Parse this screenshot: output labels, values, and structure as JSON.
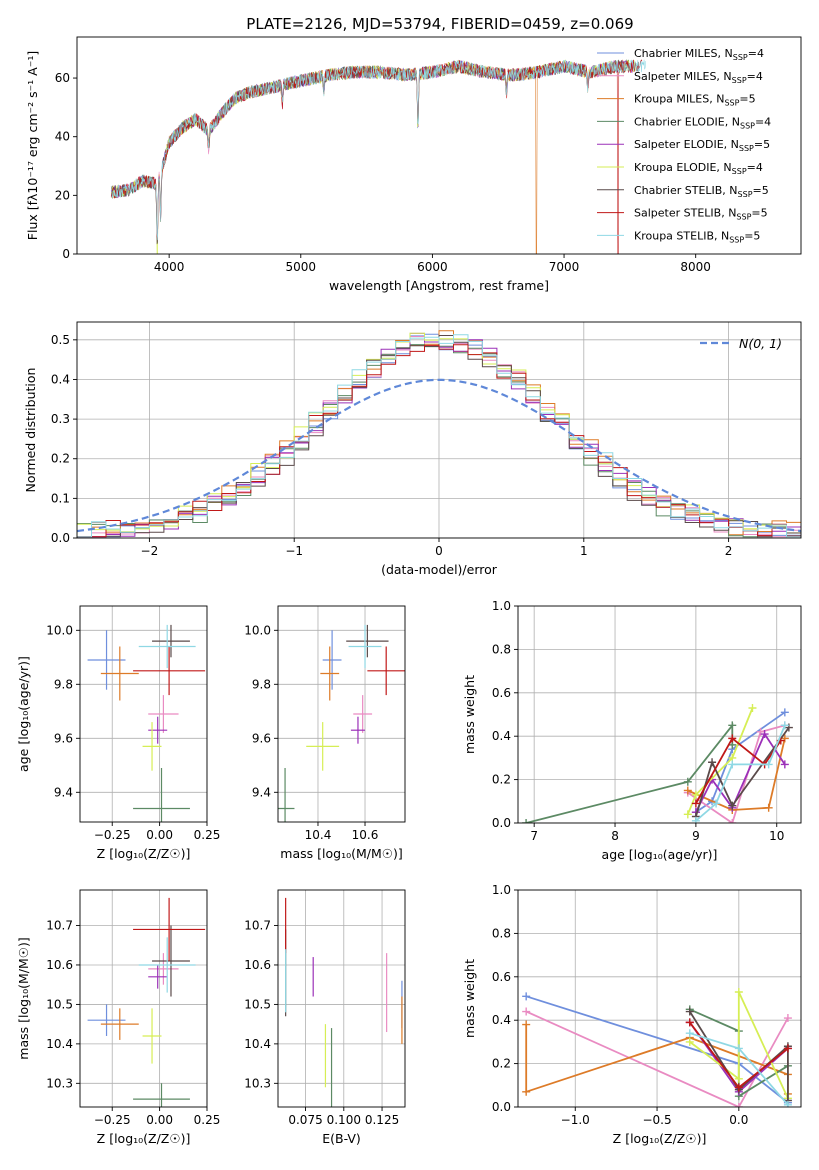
{
  "figure_title": "PLATE=2126, MJD=53794, FIBERID=0459, z=0.069",
  "models": [
    {
      "label": "Chabrier MILES, N",
      "sub": "SSP",
      "suffix": "=4",
      "color": "#6f8fdd"
    },
    {
      "label": "Salpeter MILES, N",
      "sub": "SSP",
      "suffix": "=4",
      "color": "#e98bc2"
    },
    {
      "label": "Kroupa MILES, N",
      "sub": "SSP",
      "suffix": "=5",
      "color": "#dd7b28"
    },
    {
      "label": "Chabrier ELODIE, N",
      "sub": "SSP",
      "suffix": "=4",
      "color": "#5c8a64"
    },
    {
      "label": "Salpeter ELODIE, N",
      "sub": "SSP",
      "suffix": "=5",
      "color": "#9b30b8"
    },
    {
      "label": "Kroupa ELODIE, N",
      "sub": "SSP",
      "suffix": "=4",
      "color": "#d6ee55"
    },
    {
      "label": "Chabrier STELIB, N",
      "sub": "SSP",
      "suffix": "=5",
      "color": "#5a4a4a"
    },
    {
      "label": "Salpeter STELIB, N",
      "sub": "SSP",
      "suffix": "=5",
      "color": "#c01818"
    },
    {
      "label": "Kroupa STELIB, N",
      "sub": "SSP",
      "suffix": "=5",
      "color": "#8fd8e4"
    }
  ],
  "chart_data": [
    {
      "id": "spectrum",
      "type": "line",
      "xlabel": "wavelength [Angstrom, rest frame]",
      "ylabel": "Flux [fλ10⁻¹⁷ erg cm⁻² s⁻¹ A⁻¹]",
      "xlim": [
        3300,
        8800
      ],
      "ylim": [
        0,
        74
      ],
      "xticks": [
        "4000",
        "5000",
        "6000",
        "7000",
        "8000"
      ],
      "yticks": [
        "0",
        "20",
        "40",
        "60"
      ],
      "continuum": {
        "x": [
          3560,
          3700,
          3800,
          3900,
          3950,
          4000,
          4100,
          4200,
          4300,
          4400,
          4500,
          4600,
          4800,
          5000,
          5200,
          5400,
          5600,
          5800,
          6000,
          6200,
          6400,
          6600,
          6800,
          7000,
          7200,
          7400
        ],
        "y": [
          21,
          22,
          25,
          24,
          30,
          38,
          43,
          46,
          42,
          48,
          53,
          55,
          57,
          59,
          61,
          62,
          62,
          61,
          62,
          64,
          62,
          61,
          62,
          64,
          62,
          64
        ]
      },
      "features": [
        {
          "wavelength": 3910,
          "depth": 22
        },
        {
          "wavelength": 3935,
          "depth": 16
        },
        {
          "wavelength": 4300,
          "depth": 6
        },
        {
          "wavelength": 4860,
          "depth": 6
        },
        {
          "wavelength": 5175,
          "depth": 5
        },
        {
          "wavelength": 5890,
          "depth": 18
        },
        {
          "wavelength": 6563,
          "depth": 6
        },
        {
          "wavelength": 7180,
          "depth": 5
        }
      ],
      "dropouts": [
        {
          "model": 5,
          "wavelength": 3910,
          "to": 0
        },
        {
          "model": 2,
          "wavelength": 6790,
          "to": 0
        },
        {
          "model": 7,
          "wavelength": 7410,
          "to": 0
        }
      ]
    },
    {
      "id": "residual-histogram",
      "type": "bar",
      "xlabel": "(data-model)/error",
      "ylabel": "Normed distribution",
      "xlim": [
        -2.5,
        2.5
      ],
      "ylim": [
        0,
        0.545
      ],
      "xticks": [
        "−2",
        "−1",
        "0",
        "1",
        "2"
      ],
      "yticks": [
        "0.0",
        "0.1",
        "0.2",
        "0.3",
        "0.4",
        "0.5"
      ],
      "bin_edges": [
        -2.5,
        -2.4,
        -2.3,
        -2.2,
        -2.1,
        -2.0,
        -1.9,
        -1.8,
        -1.7,
        -1.6,
        -1.5,
        -1.4,
        -1.3,
        -1.2,
        -1.1,
        -1.0,
        -0.9,
        -0.8,
        -0.7,
        -0.6,
        -0.5,
        -0.4,
        -0.3,
        -0.2,
        -0.1,
        0.0,
        0.1,
        0.2,
        0.3,
        0.4,
        0.5,
        0.6,
        0.7,
        0.8,
        0.9,
        1.0,
        1.1,
        1.2,
        1.3,
        1.4,
        1.5,
        1.6,
        1.7,
        1.8,
        1.9,
        2.0,
        2.1,
        2.2,
        2.3,
        2.4,
        2.5
      ],
      "reference_label": "N(0, 1)",
      "reference_color": "#5f88d8"
    },
    {
      "id": "age-vs-Z",
      "type": "scatter",
      "xlabel": "Z [log₁₀(Z/Z☉)]",
      "ylabel": "age  [log₁₀(age/yr)]",
      "xlim": [
        -0.42,
        0.25
      ],
      "ylim": [
        9.29,
        10.09
      ],
      "xticks": [
        "−0.25",
        "0.00",
        "0.25"
      ],
      "yticks": [
        "9.4",
        "9.6",
        "9.8",
        "10.0"
      ],
      "points": [
        {
          "model": 0,
          "x": -0.28,
          "y": 9.89,
          "xerr": 0.1,
          "yerr": 0.11
        },
        {
          "model": 1,
          "x": 0.02,
          "y": 9.69,
          "xerr": 0.08,
          "yerr": 0.07
        },
        {
          "model": 2,
          "x": -0.21,
          "y": 9.84,
          "xerr": 0.1,
          "yerr": 0.1
        },
        {
          "model": 3,
          "x": 0.01,
          "y": 9.34,
          "xerr": 0.15,
          "yerr": 0.15
        },
        {
          "model": 4,
          "x": -0.01,
          "y": 9.63,
          "xerr": 0.05,
          "yerr": 0.05
        },
        {
          "model": 5,
          "x": -0.04,
          "y": 9.57,
          "xerr": 0.05,
          "yerr": 0.09
        },
        {
          "model": 6,
          "x": 0.06,
          "y": 9.96,
          "xerr": 0.1,
          "yerr": 0.06
        },
        {
          "model": 7,
          "x": 0.05,
          "y": 9.85,
          "xerr": 0.19,
          "yerr": 0.09
        },
        {
          "model": 8,
          "x": 0.04,
          "y": 9.94,
          "xerr": 0.15,
          "yerr": 0.08
        }
      ]
    },
    {
      "id": "age-vs-mass",
      "type": "scatter",
      "xlabel": "mass [log₁₀(M/M☉)]",
      "ylabel": "",
      "xlim": [
        10.23,
        10.77
      ],
      "ylim": [
        9.29,
        10.09
      ],
      "xticks": [
        "10.4",
        "10.6"
      ],
      "yticks": [
        "9.4",
        "9.6",
        "9.8",
        "10.0"
      ],
      "points": [
        {
          "model": 0,
          "x": 10.46,
          "y": 9.89,
          "xerr": 0.04,
          "yerr": 0.11
        },
        {
          "model": 1,
          "x": 10.59,
          "y": 9.69,
          "xerr": 0.04,
          "yerr": 0.07
        },
        {
          "model": 2,
          "x": 10.45,
          "y": 9.84,
          "xerr": 0.04,
          "yerr": 0.1
        },
        {
          "model": 3,
          "x": 10.26,
          "y": 9.34,
          "xerr": 0.04,
          "yerr": 0.15
        },
        {
          "model": 4,
          "x": 10.57,
          "y": 9.63,
          "xerr": 0.03,
          "yerr": 0.05
        },
        {
          "model": 5,
          "x": 10.42,
          "y": 9.57,
          "xerr": 0.07,
          "yerr": 0.09
        },
        {
          "model": 6,
          "x": 10.61,
          "y": 9.96,
          "xerr": 0.09,
          "yerr": 0.06
        },
        {
          "model": 7,
          "x": 10.69,
          "y": 9.85,
          "xerr": 0.08,
          "yerr": 0.09
        },
        {
          "model": 8,
          "x": 10.6,
          "y": 9.94,
          "xerr": 0.07,
          "yerr": 0.08
        }
      ]
    },
    {
      "id": "mass-weight-vs-age",
      "type": "line",
      "xlabel": "age  [log₁₀(age/yr)]",
      "ylabel": "mass weight",
      "xlim": [
        6.8,
        10.3
      ],
      "ylim": [
        0,
        1
      ],
      "xticks": [
        "7",
        "8",
        "9",
        "10"
      ],
      "yticks": [
        "0.0",
        "0.2",
        "0.4",
        "0.6",
        "0.8",
        "1.0"
      ],
      "series": [
        {
          "model": 0,
          "x": [
            9.0,
            9.2,
            9.45,
            10.1
          ],
          "y": [
            0.05,
            0.1,
            0.34,
            0.51
          ]
        },
        {
          "model": 1,
          "x": [
            8.9,
            9.45,
            9.8,
            10.1
          ],
          "y": [
            0.14,
            0.0,
            0.42,
            0.45
          ]
        },
        {
          "model": 2,
          "x": [
            8.9,
            9.45,
            9.9,
            10.1
          ],
          "y": [
            0.15,
            0.06,
            0.07,
            0.39
          ]
        },
        {
          "model": 3,
          "x": [
            6.9,
            8.9,
            9.45,
            9.45
          ],
          "y": [
            0.0,
            0.19,
            0.45,
            0.36
          ]
        },
        {
          "model": 4,
          "x": [
            9.0,
            9.2,
            9.45,
            9.85,
            10.1
          ],
          "y": [
            0.05,
            0.2,
            0.07,
            0.41,
            0.27
          ]
        },
        {
          "model": 5,
          "x": [
            8.9,
            9.0,
            9.45,
            9.7
          ],
          "y": [
            0.04,
            0.13,
            0.3,
            0.53
          ]
        },
        {
          "model": 6,
          "x": [
            9.0,
            9.2,
            9.45,
            10.15
          ],
          "y": [
            0.03,
            0.28,
            0.08,
            0.44
          ]
        },
        {
          "model": 7,
          "x": [
            9.0,
            9.45,
            9.85,
            10.05
          ],
          "y": [
            0.09,
            0.39,
            0.27,
            0.38
          ]
        },
        {
          "model": 8,
          "x": [
            9.0,
            9.25,
            9.45,
            9.9,
            10.1
          ],
          "y": [
            0.01,
            0.09,
            0.27,
            0.27,
            0.45
          ]
        }
      ]
    },
    {
      "id": "mass-vs-Z",
      "type": "scatter",
      "xlabel": "Z [log₁₀(Z/Z☉)]",
      "ylabel": "mass [log₁₀(M/M☉)]",
      "xlim": [
        -0.42,
        0.25
      ],
      "ylim": [
        10.24,
        10.79
      ],
      "xticks": [
        "−0.25",
        "0.00",
        "0.25"
      ],
      "yticks": [
        "10.3",
        "10.4",
        "10.5",
        "10.6",
        "10.7"
      ],
      "points": [
        {
          "model": 0,
          "x": -0.28,
          "y": 10.46,
          "xerr": 0.1,
          "yerr": 0.04
        },
        {
          "model": 1,
          "x": 0.02,
          "y": 10.59,
          "xerr": 0.08,
          "yerr": 0.04
        },
        {
          "model": 2,
          "x": -0.21,
          "y": 10.45,
          "xerr": 0.1,
          "yerr": 0.04
        },
        {
          "model": 3,
          "x": 0.01,
          "y": 10.26,
          "xerr": 0.15,
          "yerr": 0.04
        },
        {
          "model": 4,
          "x": -0.01,
          "y": 10.57,
          "xerr": 0.05,
          "yerr": 0.03
        },
        {
          "model": 5,
          "x": -0.04,
          "y": 10.42,
          "xerr": 0.05,
          "yerr": 0.07
        },
        {
          "model": 6,
          "x": 0.06,
          "y": 10.61,
          "xerr": 0.1,
          "yerr": 0.09
        },
        {
          "model": 7,
          "x": 0.05,
          "y": 10.69,
          "xerr": 0.19,
          "yerr": 0.08
        },
        {
          "model": 8,
          "x": 0.04,
          "y": 10.6,
          "xerr": 0.15,
          "yerr": 0.07
        }
      ]
    },
    {
      "id": "mass-vs-EBV",
      "type": "scatter",
      "xlabel": "E(B-V)",
      "ylabel": "",
      "xlim": [
        0.057,
        0.14
      ],
      "ylim": [
        10.24,
        10.79
      ],
      "xticks": [
        "0.075",
        "0.100",
        "0.125"
      ],
      "yticks": [
        "10.3",
        "10.4",
        "10.5",
        "10.6",
        "10.7"
      ],
      "points": [
        {
          "model": 0,
          "x": 0.138,
          "y": 10.5,
          "xerr": 0,
          "yerr": 0.06
        },
        {
          "model": 1,
          "x": 0.128,
          "y": 10.53,
          "xerr": 0,
          "yerr": 0.1
        },
        {
          "model": 2,
          "x": 0.138,
          "y": 10.46,
          "xerr": 0,
          "yerr": 0.06
        },
        {
          "model": 3,
          "x": 0.092,
          "y": 10.34,
          "xerr": 0,
          "yerr": 0.1
        },
        {
          "model": 4,
          "x": 0.08,
          "y": 10.57,
          "xerr": 0,
          "yerr": 0.05
        },
        {
          "model": 5,
          "x": 0.088,
          "y": 10.37,
          "xerr": 0,
          "yerr": 0.08
        },
        {
          "model": 6,
          "x": 0.062,
          "y": 10.58,
          "xerr": 0,
          "yerr": 0.11
        },
        {
          "model": 7,
          "x": 0.062,
          "y": 10.7,
          "xerr": 0,
          "yerr": 0.07
        },
        {
          "model": 8,
          "x": 0.062,
          "y": 10.56,
          "xerr": 0,
          "yerr": 0.08
        }
      ]
    },
    {
      "id": "mass-weight-vs-Z",
      "type": "line",
      "xlabel": "Z [log₁₀(Z/Z☉)]",
      "ylabel": "mass weight",
      "xlim": [
        -1.35,
        0.38
      ],
      "ylim": [
        0,
        1
      ],
      "xticks": [
        "−1.0",
        "−0.5",
        "0.0"
      ],
      "yticks": [
        "0.0",
        "0.2",
        "0.4",
        "0.6",
        "0.8",
        "1.0"
      ],
      "series": [
        {
          "model": 0,
          "x": [
            -1.3,
            0.0,
            0.3
          ],
          "y": [
            0.51,
            0.2,
            0.02
          ]
        },
        {
          "model": 1,
          "x": [
            -1.3,
            0.0,
            0.3
          ],
          "y": [
            0.44,
            0.0,
            0.41
          ]
        },
        {
          "model": 2,
          "x": [
            -1.3,
            -1.3,
            -0.3,
            0.3,
            0.3
          ],
          "y": [
            0.38,
            0.07,
            0.32,
            0.15,
            0.06
          ]
        },
        {
          "model": 3,
          "x": [
            -0.3,
            0.0,
            0.0,
            0.3
          ],
          "y": [
            0.45,
            0.35,
            0.05,
            0.19
          ]
        },
        {
          "model": 4,
          "x": [
            -0.3,
            0.0,
            0.3
          ],
          "y": [
            0.39,
            0.07,
            0.27
          ]
        },
        {
          "model": 5,
          "x": [
            -0.3,
            0.0,
            0.0,
            0.3
          ],
          "y": [
            0.3,
            0.13,
            0.53,
            0.04
          ]
        },
        {
          "model": 6,
          "x": [
            -0.3,
            0.0,
            0.3,
            0.3
          ],
          "y": [
            0.44,
            0.08,
            0.28,
            0.03
          ]
        },
        {
          "model": 7,
          "x": [
            -0.3,
            0.0,
            0.3
          ],
          "y": [
            0.39,
            0.09,
            0.27
          ]
        },
        {
          "model": 8,
          "x": [
            -0.3,
            0.0,
            0.3
          ],
          "y": [
            0.34,
            0.27,
            0.01
          ]
        }
      ]
    }
  ]
}
